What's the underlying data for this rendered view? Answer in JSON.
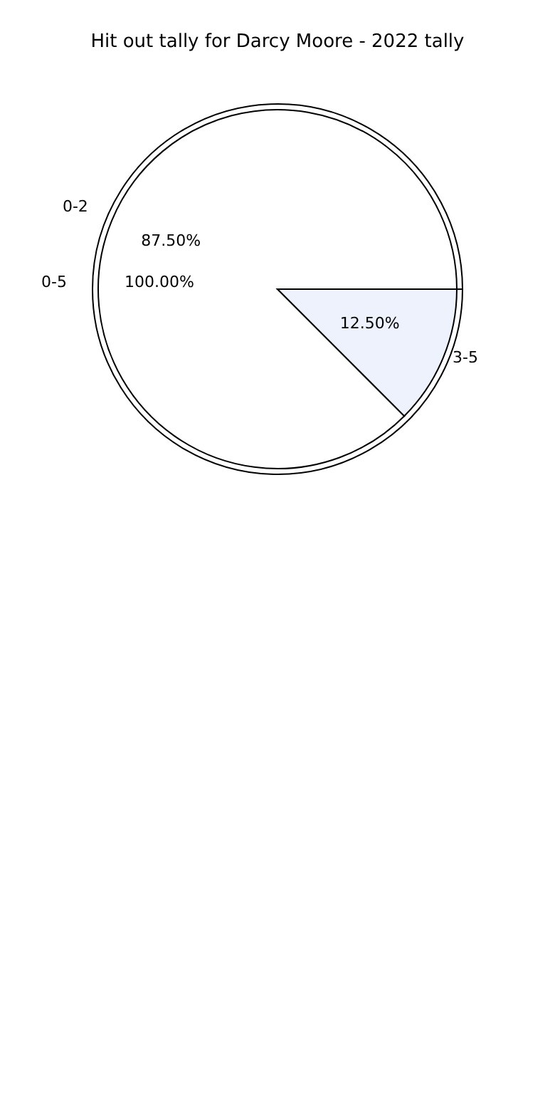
{
  "chart_data": [
    {
      "type": "pie",
      "title": "Hit out tally for Darcy Moore - 2022 tally",
      "categories": [
        "0-5"
      ],
      "values": [
        100
      ],
      "value_labels": [
        "100.00%"
      ],
      "colors": [
        "#ffffff"
      ]
    },
    {
      "type": "pie",
      "categories": [
        "0-2",
        "3-5"
      ],
      "values": [
        87.5,
        12.5
      ],
      "value_labels": [
        "87.50%",
        "12.50%"
      ],
      "colors": [
        "#ffffff",
        "#eef2fc"
      ]
    }
  ]
}
